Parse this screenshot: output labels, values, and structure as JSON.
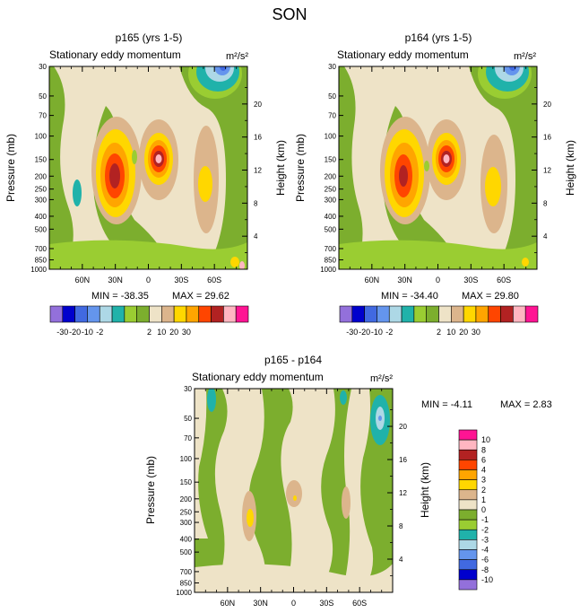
{
  "figure_title": "SON",
  "chart_data": [
    {
      "type": "heatmap",
      "title": "p165 (yrs 1-5)",
      "subtitle_left": "Stationary eddy momentum",
      "units": "m²/s²",
      "ylabel": "Pressure (mb)",
      "ylabel_right": "Height (km)",
      "xlabel": "",
      "x_ticks": [
        "60N",
        "30N",
        "0",
        "30S",
        "60S"
      ],
      "y_ticks": [
        "30",
        "50",
        "70",
        "100",
        "150",
        "200",
        "250",
        "300",
        "400",
        "500",
        "700",
        "850",
        "1000"
      ],
      "y_ticks_right": [
        "20",
        "16",
        "12",
        "8",
        "4"
      ],
      "xlim": [
        90,
        -90
      ],
      "ylim": [
        1000,
        30
      ],
      "min_label": "MIN = -38.35",
      "max_label": "MAX =  29.62",
      "min": -38.35,
      "max": 29.62
    },
    {
      "type": "heatmap",
      "title": "p164 (yrs 1-5)",
      "subtitle_left": "Stationary eddy momentum",
      "units": "m²/s²",
      "ylabel": "Pressure (mb)",
      "ylabel_right": "Height (km)",
      "xlabel": "",
      "x_ticks": [
        "60N",
        "30N",
        "0",
        "30S",
        "60S"
      ],
      "y_ticks": [
        "30",
        "50",
        "70",
        "100",
        "150",
        "200",
        "250",
        "300",
        "400",
        "500",
        "700",
        "850",
        "1000"
      ],
      "y_ticks_right": [
        "20",
        "16",
        "12",
        "8",
        "4"
      ],
      "xlim": [
        90,
        -90
      ],
      "ylim": [
        1000,
        30
      ],
      "min_label": "MIN = -34.40",
      "max_label": "MAX =  29.80",
      "min": -34.4,
      "max": 29.8
    },
    {
      "type": "heatmap",
      "title": "p165 - p164",
      "subtitle_left": "Stationary eddy momentum",
      "units": "m²/s²",
      "ylabel": "Pressure (mb)",
      "ylabel_right": "Height (km)",
      "xlabel": "",
      "x_ticks": [
        "60N",
        "30N",
        "0",
        "30S",
        "60S"
      ],
      "y_ticks": [
        "30",
        "50",
        "70",
        "100",
        "150",
        "200",
        "250",
        "300",
        "400",
        "500",
        "700",
        "850",
        "1000"
      ],
      "y_ticks_right": [
        "20",
        "16",
        "12",
        "8",
        "4"
      ],
      "xlim": [
        90,
        -90
      ],
      "ylim": [
        1000,
        30
      ],
      "min_label": "MIN =  -4.11",
      "max_label": "MAX =   2.83",
      "min": -4.11,
      "max": 2.83
    }
  ],
  "colorbar_top": {
    "labels": [
      "-30",
      "-20",
      "-10",
      "-2",
      "2",
      "10",
      "20",
      "30"
    ],
    "colors": [
      "#9370db",
      "#0000cd",
      "#4169e1",
      "#6495ed",
      "#add8e6",
      "#20b2aa",
      "#9acd32",
      "#7cae2e",
      "#eee3c7",
      "#dcb58c",
      "#ffd700",
      "#ffa500",
      "#ff4500",
      "#b22222",
      "#ffb6c1",
      "#ff1493"
    ]
  },
  "colorbar_diff": {
    "labels": [
      "10",
      "8",
      "6",
      "4",
      "3",
      "2",
      "1",
      "0",
      "-1",
      "-2",
      "-3",
      "-4",
      "-6",
      "-8",
      "-10"
    ],
    "colors": [
      "#ff1493",
      "#ffb6c1",
      "#b22222",
      "#ff4500",
      "#ffa500",
      "#ffd700",
      "#dcb58c",
      "#eee3c7",
      "#7cae2e",
      "#9acd32",
      "#20b2aa",
      "#add8e6",
      "#6495ed",
      "#4169e1",
      "#0000cd",
      "#9370db"
    ]
  }
}
